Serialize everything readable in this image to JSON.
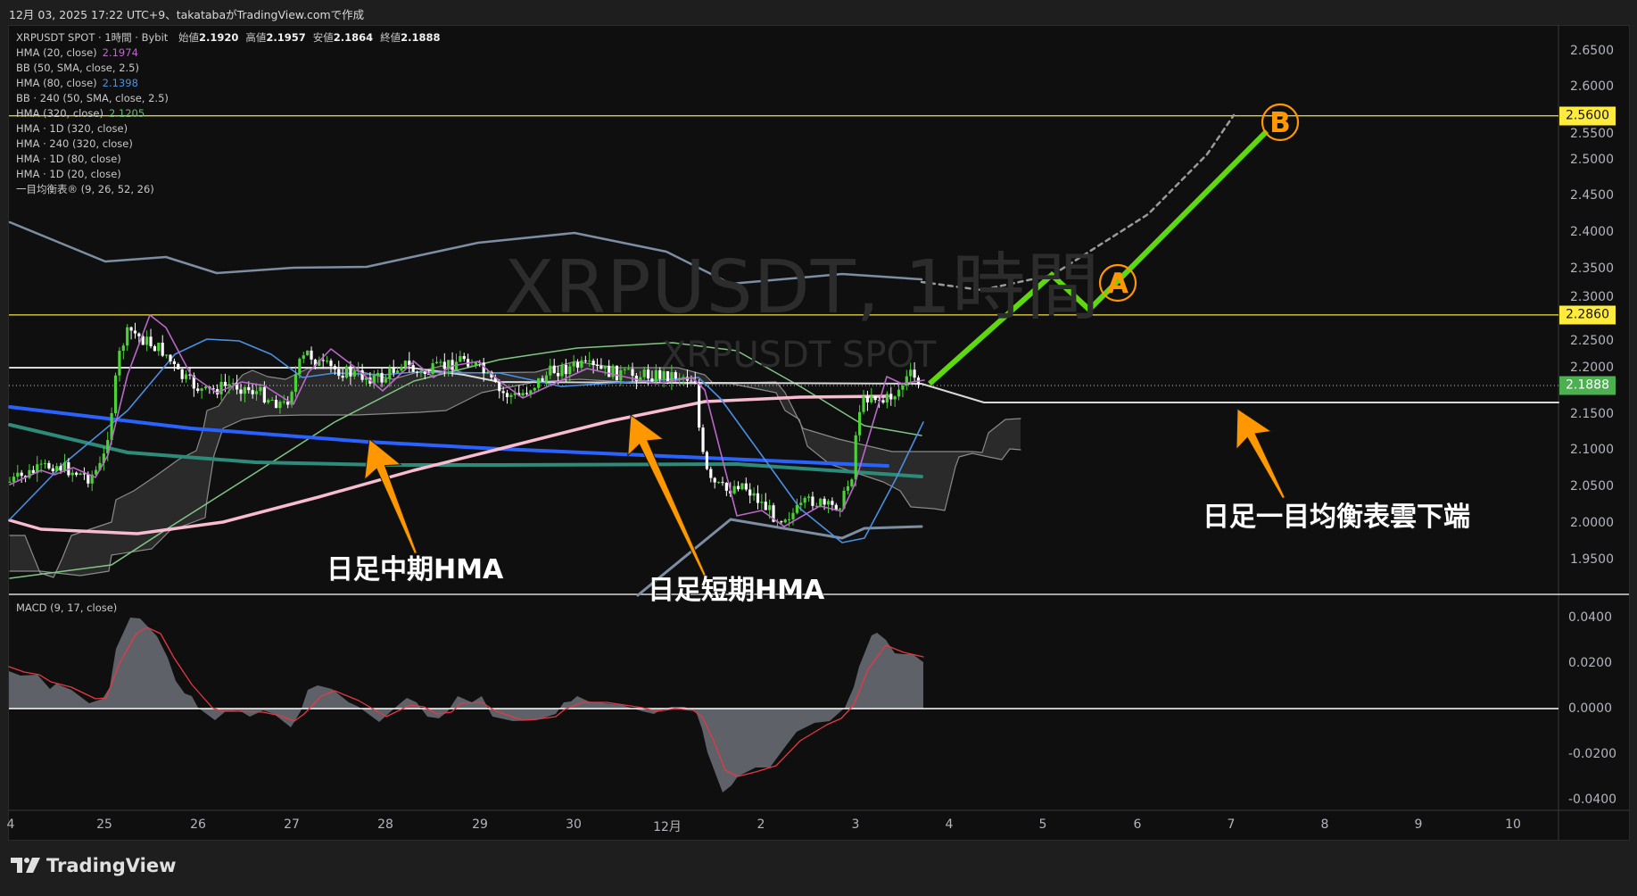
{
  "topbar": {
    "title": "12月 03, 2025 17:22 UTC+9、takatabaがTradingView.comで作成"
  },
  "legend": {
    "symbol_line": "XRPUSDT SPOT · 1時間 · Bybit",
    "ohlc": [
      {
        "label": "始値",
        "value": "2.1920"
      },
      {
        "label": "高値",
        "value": "2.1957"
      },
      {
        "label": "安値",
        "value": "2.1864"
      },
      {
        "label": "終値",
        "value": "2.1888"
      }
    ],
    "indicators": [
      {
        "name": "HMA (20, close)",
        "value": "2.1974",
        "color": "#ba68c8"
      },
      {
        "name": "BB (50, SMA, close, 2.5)",
        "value": "",
        "color": ""
      },
      {
        "name": "HMA (80, close)",
        "value": "2.1398",
        "color": "#4a90e2"
      },
      {
        "name": "BB · 240 (50, SMA, close, 2.5)",
        "value": "",
        "color": ""
      },
      {
        "name": "HMA (320, close)",
        "value": "2.1205",
        "color": "#66bb6a"
      },
      {
        "name": "HMA · 1D (320, close)",
        "value": "",
        "color": ""
      },
      {
        "name": "HMA · 240 (320, close)",
        "value": "",
        "color": ""
      },
      {
        "name": "HMA · 1D (80, close)",
        "value": "",
        "color": ""
      },
      {
        "name": "HMA · 1D (20, close)",
        "value": "",
        "color": ""
      },
      {
        "name": "一目均衡表® (9, 26, 52, 26)",
        "value": "",
        "color": ""
      }
    ]
  },
  "watermark": {
    "main": "XRPUSDT, 1時間",
    "sub": "XRPUSDT SPOT"
  },
  "price_axis": {
    "ticks": [
      "2.6500",
      "2.6000",
      "2.5500",
      "2.5000",
      "2.4500",
      "2.4000",
      "2.3500",
      "2.3000",
      "2.2500",
      "2.2000",
      "2.1500",
      "2.1000",
      "2.0500",
      "2.0000",
      "1.9500"
    ],
    "labels": [
      {
        "value": "2.5600",
        "bg": "#ffeb3b",
        "fg": "#131313"
      },
      {
        "value": "2.2860",
        "bg": "#ffeb3b",
        "fg": "#131313"
      },
      {
        "value": "2.1888",
        "bg": "#4caf50",
        "fg": "#ffffff"
      }
    ]
  },
  "macd": {
    "title": "MACD (9, 17, close)",
    "ticks": [
      "0.0400",
      "0.0200",
      "0.0000",
      "-0.0200",
      "-0.0400"
    ],
    "histogram_color": "#5f6168",
    "signal_color": "#e53945"
  },
  "time_axis": {
    "labels": [
      "4",
      "25",
      "26",
      "27",
      "28",
      "29",
      "30",
      "12月",
      "2",
      "3",
      "4",
      "5",
      "6",
      "7",
      "8",
      "9",
      "10"
    ]
  },
  "annotations": {
    "mid_hma": "日足中期HMA",
    "short_hma": "日足短期HMA",
    "cloud_bottom": "日足一目均衡表雲下端",
    "point_a": "A",
    "point_b": "B",
    "arrow_color": "#ff9800",
    "projection_color": "#5fd80f"
  },
  "footer": {
    "logo_text": "TradingView"
  },
  "colors": {
    "up": "#4cd137",
    "down": "#ffffff",
    "background": "#0f0f0f",
    "level_line": "#f5e33b"
  }
}
